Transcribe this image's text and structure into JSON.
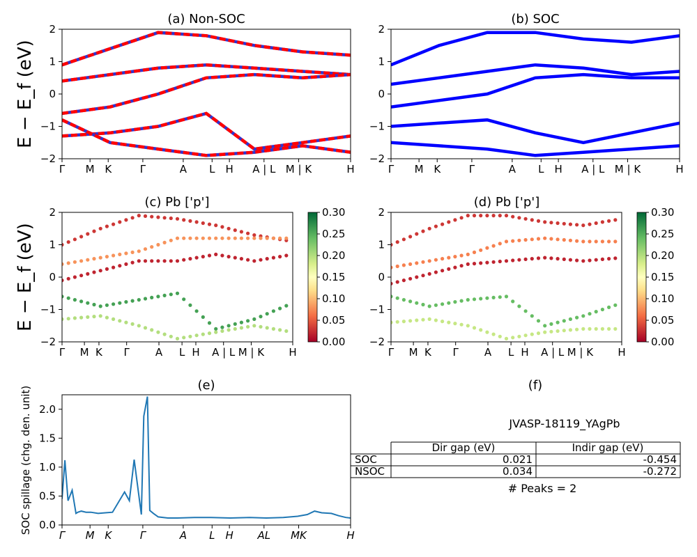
{
  "chart_data": [
    {
      "panel": "a",
      "type": "line",
      "title": "(a) Non-SOC",
      "ylabel": "E − E_f (eV)",
      "ylim": [
        -2,
        2
      ],
      "yticks": [
        "2",
        "1",
        "0",
        "−1",
        "−2"
      ],
      "xticks": [
        "Γ",
        "M",
        "K",
        "Γ",
        "A",
        "L",
        "H",
        "A | L",
        "M | K",
        "H"
      ],
      "colors": {
        "primary": "#ff0000",
        "secondary": "#3333cc"
      },
      "style": "red/blue dashed overlapped bands",
      "bands": [
        {
          "x": [
            0,
            10,
            20,
            30,
            40,
            50,
            60
          ],
          "y": [
            0.9,
            1.4,
            1.9,
            1.8,
            1.5,
            1.3,
            1.2
          ]
        },
        {
          "x": [
            0,
            10,
            20,
            30,
            40,
            50,
            60
          ],
          "y": [
            0.4,
            0.6,
            0.8,
            0.9,
            0.8,
            0.7,
            0.6
          ]
        },
        {
          "x": [
            0,
            10,
            20,
            30,
            40,
            50,
            60
          ],
          "y": [
            -0.6,
            -0.4,
            0.0,
            0.5,
            0.6,
            0.5,
            0.6
          ]
        },
        {
          "x": [
            0,
            10,
            20,
            30,
            40,
            50,
            60
          ],
          "y": [
            -1.3,
            -1.2,
            -1.0,
            -0.6,
            -1.7,
            -1.5,
            -1.3
          ]
        },
        {
          "x": [
            0,
            10,
            20,
            30,
            40,
            50,
            60
          ],
          "y": [
            -0.8,
            -1.5,
            -1.7,
            -1.9,
            -1.8,
            -1.6,
            -1.8
          ]
        }
      ]
    },
    {
      "panel": "b",
      "type": "line",
      "title": "(b) SOC",
      "ylim": [
        -2,
        2
      ],
      "yticks": [
        "2",
        "1",
        "0",
        "−1",
        "−2"
      ],
      "xticks": [
        "Γ",
        "M",
        "K",
        "Γ",
        "A",
        "L",
        "H",
        "A | L",
        "M | K",
        "H"
      ],
      "colors": {
        "primary": "#0000ff"
      },
      "bands": [
        {
          "x": [
            0,
            10,
            20,
            30,
            40,
            50,
            60
          ],
          "y": [
            0.9,
            1.5,
            1.9,
            1.9,
            1.7,
            1.6,
            1.8
          ]
        },
        {
          "x": [
            0,
            10,
            20,
            30,
            40,
            50,
            60
          ],
          "y": [
            0.3,
            0.5,
            0.7,
            0.9,
            0.8,
            0.6,
            0.7
          ]
        },
        {
          "x": [
            0,
            10,
            20,
            30,
            40,
            50,
            60
          ],
          "y": [
            -0.4,
            -0.2,
            0.0,
            0.5,
            0.6,
            0.5,
            0.5
          ]
        },
        {
          "x": [
            0,
            10,
            20,
            30,
            40,
            50,
            60
          ],
          "y": [
            -1.0,
            -0.9,
            -0.8,
            -1.2,
            -1.5,
            -1.2,
            -0.9
          ]
        },
        {
          "x": [
            0,
            10,
            20,
            30,
            40,
            50,
            60
          ],
          "y": [
            -1.5,
            -1.6,
            -1.7,
            -1.9,
            -1.8,
            -1.7,
            -1.6
          ]
        }
      ]
    },
    {
      "panel": "c",
      "type": "scatter",
      "title": "(c)  Pb ['p']",
      "ylabel": "E − E_f (eV)",
      "ylim": [
        -2,
        2
      ],
      "yticks": [
        "2",
        "1",
        "0",
        "−1",
        "−2"
      ],
      "xticks": [
        "Γ",
        "M",
        "K",
        "Γ",
        "A",
        "L",
        "H",
        "A | L",
        "M | K",
        "H"
      ],
      "colorbar": {
        "range": [
          0,
          0.3
        ],
        "ticks": [
          "0.30",
          "0.25",
          "0.20",
          "0.15",
          "0.10",
          "0.05",
          "0.00"
        ]
      },
      "bands": [
        {
          "x": [
            0,
            10,
            20,
            30,
            40,
            50,
            60
          ],
          "y": [
            1.0,
            1.5,
            1.9,
            1.8,
            1.6,
            1.3,
            1.1
          ],
          "w": 0.03
        },
        {
          "x": [
            0,
            10,
            20,
            30,
            40,
            50,
            60
          ],
          "y": [
            0.4,
            0.6,
            0.8,
            1.2,
            1.2,
            1.2,
            1.2
          ],
          "w": 0.08
        },
        {
          "x": [
            0,
            10,
            20,
            30,
            40,
            50,
            60
          ],
          "y": [
            -0.1,
            0.2,
            0.5,
            0.5,
            0.7,
            0.5,
            0.7
          ],
          "w": 0.02
        },
        {
          "x": [
            0,
            10,
            20,
            30,
            40,
            50,
            60
          ],
          "y": [
            -0.6,
            -0.9,
            -0.7,
            -0.5,
            -1.6,
            -1.3,
            -0.8
          ],
          "w": 0.26
        },
        {
          "x": [
            0,
            10,
            20,
            30,
            40,
            50,
            60
          ],
          "y": [
            -1.3,
            -1.2,
            -1.5,
            -1.9,
            -1.7,
            -1.5,
            -1.7
          ],
          "w": 0.2
        }
      ]
    },
    {
      "panel": "d",
      "type": "scatter",
      "title": "(d) Pb ['p']",
      "ylim": [
        -2,
        2
      ],
      "yticks": [
        "2",
        "1",
        "0",
        "−1",
        "−2"
      ],
      "xticks": [
        "Γ",
        "M",
        "K",
        "Γ",
        "A",
        "L",
        "H",
        "A | L",
        "M | K",
        "H"
      ],
      "colorbar": {
        "range": [
          0,
          0.3
        ],
        "ticks": [
          "0.30",
          "0.25",
          "0.20",
          "0.15",
          "0.10",
          "0.05",
          "0.00"
        ]
      },
      "bands": [
        {
          "x": [
            0,
            10,
            20,
            30,
            40,
            50,
            60
          ],
          "y": [
            1.0,
            1.5,
            1.9,
            1.9,
            1.7,
            1.6,
            1.8
          ],
          "w": 0.03
        },
        {
          "x": [
            0,
            10,
            20,
            30,
            40,
            50,
            60
          ],
          "y": [
            0.3,
            0.5,
            0.7,
            1.1,
            1.2,
            1.1,
            1.1
          ],
          "w": 0.07
        },
        {
          "x": [
            0,
            10,
            20,
            30,
            40,
            50,
            60
          ],
          "y": [
            -0.2,
            0.1,
            0.4,
            0.5,
            0.6,
            0.5,
            0.6
          ],
          "w": 0.02
        },
        {
          "x": [
            0,
            10,
            20,
            30,
            40,
            50,
            60
          ],
          "y": [
            -0.6,
            -0.9,
            -0.7,
            -0.6,
            -1.5,
            -1.2,
            -0.8
          ],
          "w": 0.24
        },
        {
          "x": [
            0,
            10,
            20,
            30,
            40,
            50,
            60
          ],
          "y": [
            -1.4,
            -1.3,
            -1.5,
            -1.9,
            -1.7,
            -1.6,
            -1.6
          ],
          "w": 0.19
        }
      ]
    },
    {
      "panel": "e",
      "type": "line",
      "title": "(e)",
      "ylabel": "SOC spillage (chg. den. unit)",
      "ylim": [
        0,
        2.25
      ],
      "yticks": [
        "0.0",
        "0.5",
        "1.0",
        "1.5",
        "2.0"
      ],
      "xticks": [
        "Γ",
        "M",
        "K",
        "Γ",
        "A",
        "L",
        "H",
        "AL",
        "MK",
        "H"
      ],
      "color": "#1f77b4",
      "x": [
        0,
        1.2,
        2.5,
        4.2,
        5.8,
        6.6,
        8,
        10,
        12,
        15,
        18,
        21,
        26,
        28,
        30,
        33,
        34,
        35.5,
        36.5,
        38,
        40,
        44,
        48,
        55,
        62,
        70,
        78,
        85,
        92,
        98,
        102,
        105,
        108,
        112,
        115,
        118,
        120
      ],
      "y": [
        0.45,
        1.12,
        0.42,
        0.6,
        0.2,
        0.22,
        0.24,
        0.22,
        0.22,
        0.2,
        0.21,
        0.22,
        0.57,
        0.42,
        1.13,
        0.18,
        1.88,
        2.22,
        0.25,
        0.2,
        0.14,
        0.12,
        0.12,
        0.13,
        0.13,
        0.12,
        0.13,
        0.12,
        0.13,
        0.15,
        0.18,
        0.24,
        0.21,
        0.2,
        0.16,
        0.13,
        0.12
      ]
    }
  ],
  "panel_f": {
    "title": "(f)",
    "material": "JVASP-18119_YAgPb",
    "table": {
      "headers": [
        "",
        "Dir gap (eV)",
        "Indir gap (eV)"
      ],
      "rows": [
        [
          "SOC",
          "0.021",
          "-0.454"
        ],
        [
          "NSOC",
          "0.034",
          "-0.272"
        ]
      ]
    },
    "peaks": "# Peaks = 2"
  }
}
